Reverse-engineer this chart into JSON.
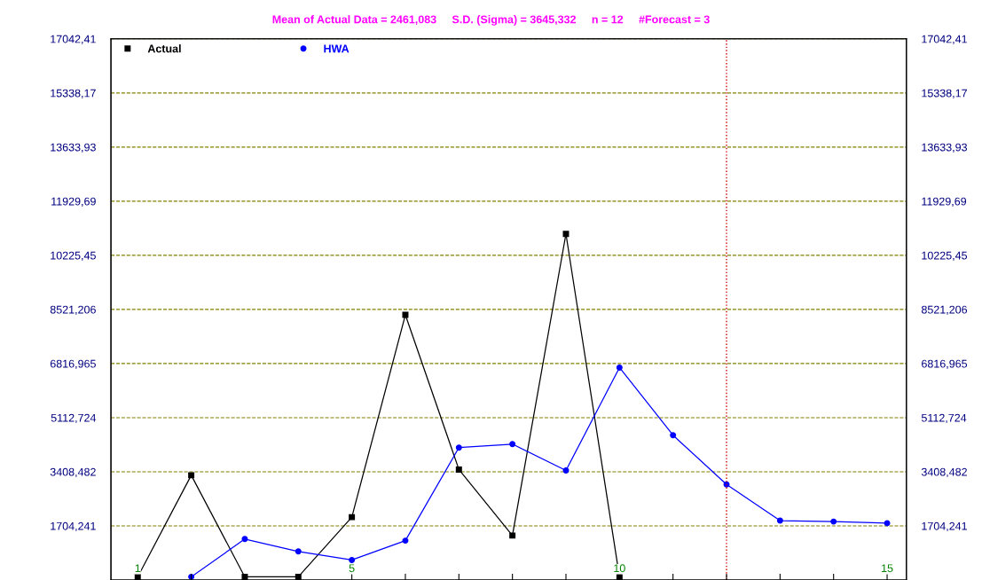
{
  "chart_data": {
    "type": "line",
    "title": "Mean of Actual Data = 2461,083     S.D. (Sigma) = 3645,332     n = 12     #Forecast = 3",
    "x": [
      1,
      2,
      3,
      4,
      5,
      6,
      7,
      8,
      9,
      10,
      11,
      12,
      13,
      14,
      15
    ],
    "series": [
      {
        "name": "Actual",
        "color": "#000000",
        "marker": "square",
        "values": [
          100,
          3300,
          100,
          100,
          1980,
          8350,
          3480,
          1400,
          10900,
          100,
          null,
          null,
          null,
          null,
          null
        ]
      },
      {
        "name": "HWA",
        "color": "#0000ff",
        "marker": "circle",
        "values": [
          null,
          100,
          1290,
          900,
          630,
          1240,
          4170,
          4280,
          3450,
          6690,
          4560,
          3010,
          1870,
          1840,
          1790
        ]
      }
    ],
    "xlim": [
      0.5,
      15.36
    ],
    "xticks": [
      1,
      {
        "value": 2,
        "label": null
      },
      {
        "value": 3,
        "label": null
      },
      {
        "value": 4,
        "label": null
      },
      5,
      {
        "value": 6,
        "label": null
      },
      {
        "value": 7,
        "label": null
      },
      {
        "value": 8,
        "label": null
      },
      {
        "value": 9,
        "label": null
      },
      10,
      {
        "value": 11,
        "label": null
      },
      {
        "value": 12,
        "label": null
      },
      {
        "value": 13,
        "label": null
      },
      {
        "value": 14,
        "label": null
      },
      15
    ],
    "ylim": [
      0,
      17042.41
    ],
    "yticks": [
      {
        "value": 1704.241,
        "label": "1704,241"
      },
      {
        "value": 3408.482,
        "label": "3408,482"
      },
      {
        "value": 5112.724,
        "label": "5112,724"
      },
      {
        "value": 6816.965,
        "label": "6816,965"
      },
      {
        "value": 8521.206,
        "label": "8521,206"
      },
      {
        "value": 10225.45,
        "label": "10225,45"
      },
      {
        "value": 11929.69,
        "label": "11929,69"
      },
      {
        "value": 13633.93,
        "label": "13633,93"
      },
      {
        "value": 15338.17,
        "label": "15338,17"
      },
      {
        "value": 17042.41,
        "label": "17042,41"
      }
    ],
    "y2lim": [
      0,
      17042.41
    ],
    "y2ticks": [
      {
        "value": 1704.241,
        "label": "1704,241"
      },
      {
        "value": 3408.482,
        "label": "3408,482"
      },
      {
        "value": 5112.724,
        "label": "5112,724"
      },
      {
        "value": 6816.965,
        "label": "6816,965"
      },
      {
        "value": 8521.206,
        "label": "8521,206"
      },
      {
        "value": 10225.45,
        "label": "10225,45"
      },
      {
        "value": 11929.69,
        "label": "11929,69"
      },
      {
        "value": 13633.93,
        "label": "13633,93"
      },
      {
        "value": 15338.17,
        "label": "15338,17"
      },
      {
        "value": 17042.41,
        "label": "17042,41"
      }
    ],
    "ref_lines": [
      {
        "axis": "x",
        "value": 12,
        "color": "#cc0000",
        "line_style": "dotted"
      }
    ],
    "grid": "y",
    "legend": "top left"
  }
}
